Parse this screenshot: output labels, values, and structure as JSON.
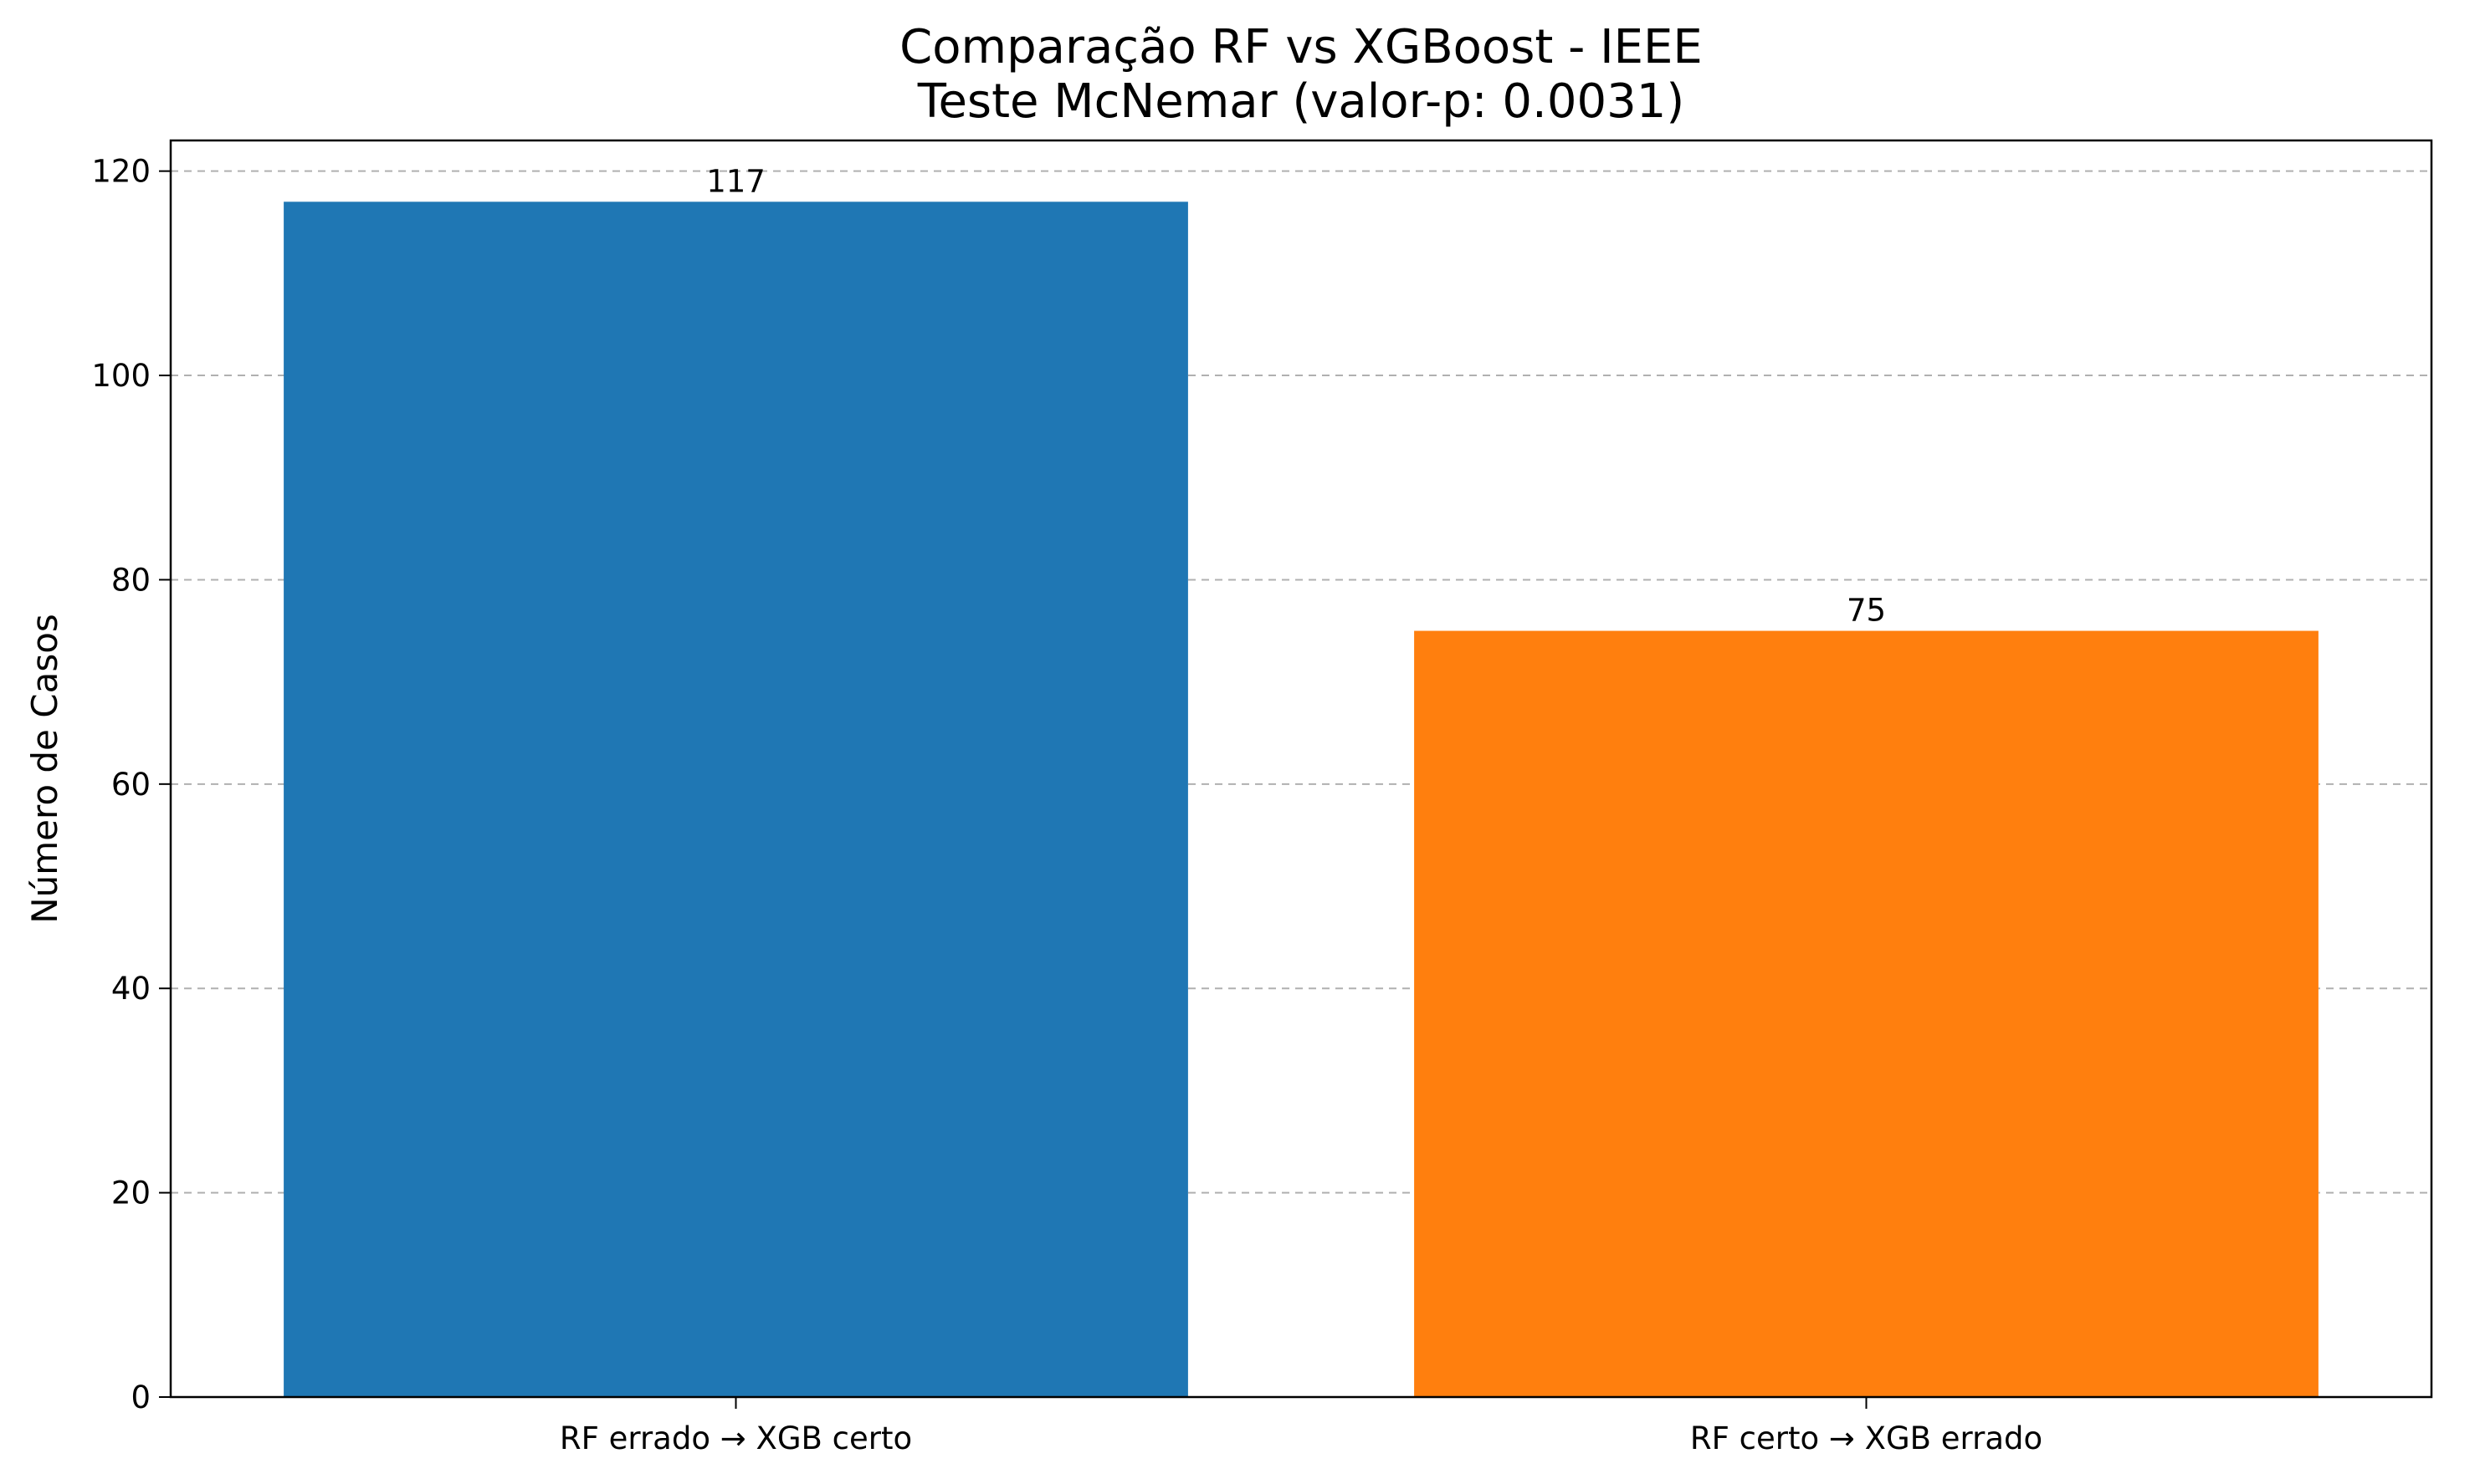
{
  "chart_data": {
    "type": "bar",
    "title": "Comparação RF vs XGBoost - IEEE",
    "subtitle": "Teste McNemar (valor-p: 0.0031)",
    "xlabel": "",
    "ylabel": "Número de Casos",
    "categories": [
      "RF errado → XGB certo",
      "RF certo → XGB errado"
    ],
    "values": [
      117,
      75
    ],
    "value_labels": [
      "117",
      "75"
    ],
    "colors": [
      "#1f77b4",
      "#ff7f0e"
    ],
    "ylim": [
      0,
      123
    ],
    "yticks": [
      0,
      20,
      40,
      60,
      80,
      100,
      120
    ],
    "ytick_labels": [
      "0",
      "20",
      "40",
      "60",
      "80",
      "100",
      "120"
    ],
    "grid": "horizontal dashed",
    "legend": "none"
  }
}
